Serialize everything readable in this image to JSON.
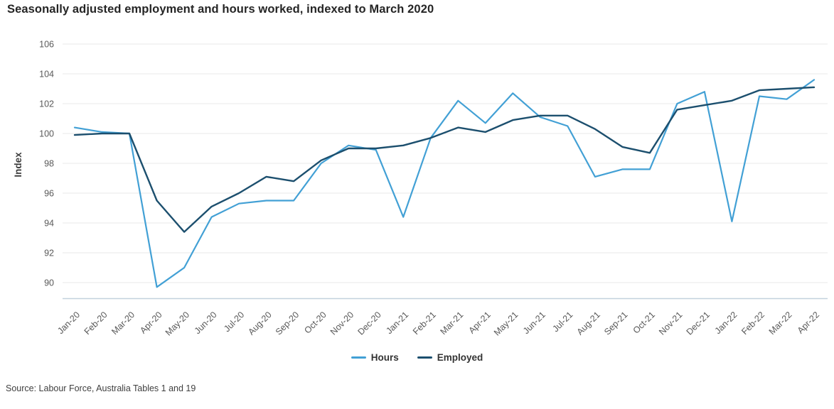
{
  "source_note": "Source: Labour Force, Australia Tables 1 and 19",
  "colors": {
    "hours": "#42A0D5",
    "employed": "#1C4F6E",
    "gridline": "#E8E8E8",
    "axis_line": "#C3D2DE",
    "tick_label": "#595959",
    "axis_title": "#3d3d3d"
  },
  "legend": {
    "position": "bottom"
  },
  "chart_data": {
    "type": "line",
    "title": "Seasonally adjusted employment and hours worked, indexed to March 2020",
    "xlabel": "",
    "ylabel": "Index",
    "ylim": [
      90,
      106
    ],
    "yticks": [
      90,
      92,
      94,
      96,
      98,
      100,
      102,
      104,
      106
    ],
    "grid": true,
    "legend_position": "bottom",
    "categories": [
      "Jan-20",
      "Feb-20",
      "Mar-20",
      "Apr-20",
      "May-20",
      "Jun-20",
      "Jul-20",
      "Aug-20",
      "Sep-20",
      "Oct-20",
      "Nov-20",
      "Dec-20",
      "Jan-21",
      "Feb-21",
      "Mar-21",
      "Apr-21",
      "May-21",
      "Jun-21",
      "Jul-21",
      "Aug-21",
      "Sep-21",
      "Oct-21",
      "Nov-21",
      "Dec-21",
      "Jan-22",
      "Feb-22",
      "Mar-22",
      "Apr-22"
    ],
    "series": [
      {
        "name": "Hours",
        "color": "#42A0D5",
        "values": [
          100.4,
          100.1,
          100.0,
          89.7,
          91.0,
          94.4,
          95.3,
          95.5,
          95.5,
          98.0,
          99.2,
          98.9,
          94.4,
          99.7,
          102.2,
          100.7,
          102.7,
          101.1,
          100.5,
          97.1,
          97.6,
          97.6,
          102.0,
          102.8,
          94.1,
          102.5,
          102.3,
          103.6
        ]
      },
      {
        "name": "Employed",
        "color": "#1C4F6E",
        "values": [
          99.9,
          100.0,
          100.0,
          95.5,
          93.4,
          95.1,
          96.0,
          97.1,
          96.8,
          98.2,
          99.0,
          99.0,
          99.2,
          99.7,
          100.4,
          100.1,
          100.9,
          101.2,
          101.2,
          100.3,
          99.1,
          98.7,
          101.6,
          101.9,
          102.2,
          102.9,
          103.0,
          103.1
        ]
      }
    ]
  }
}
